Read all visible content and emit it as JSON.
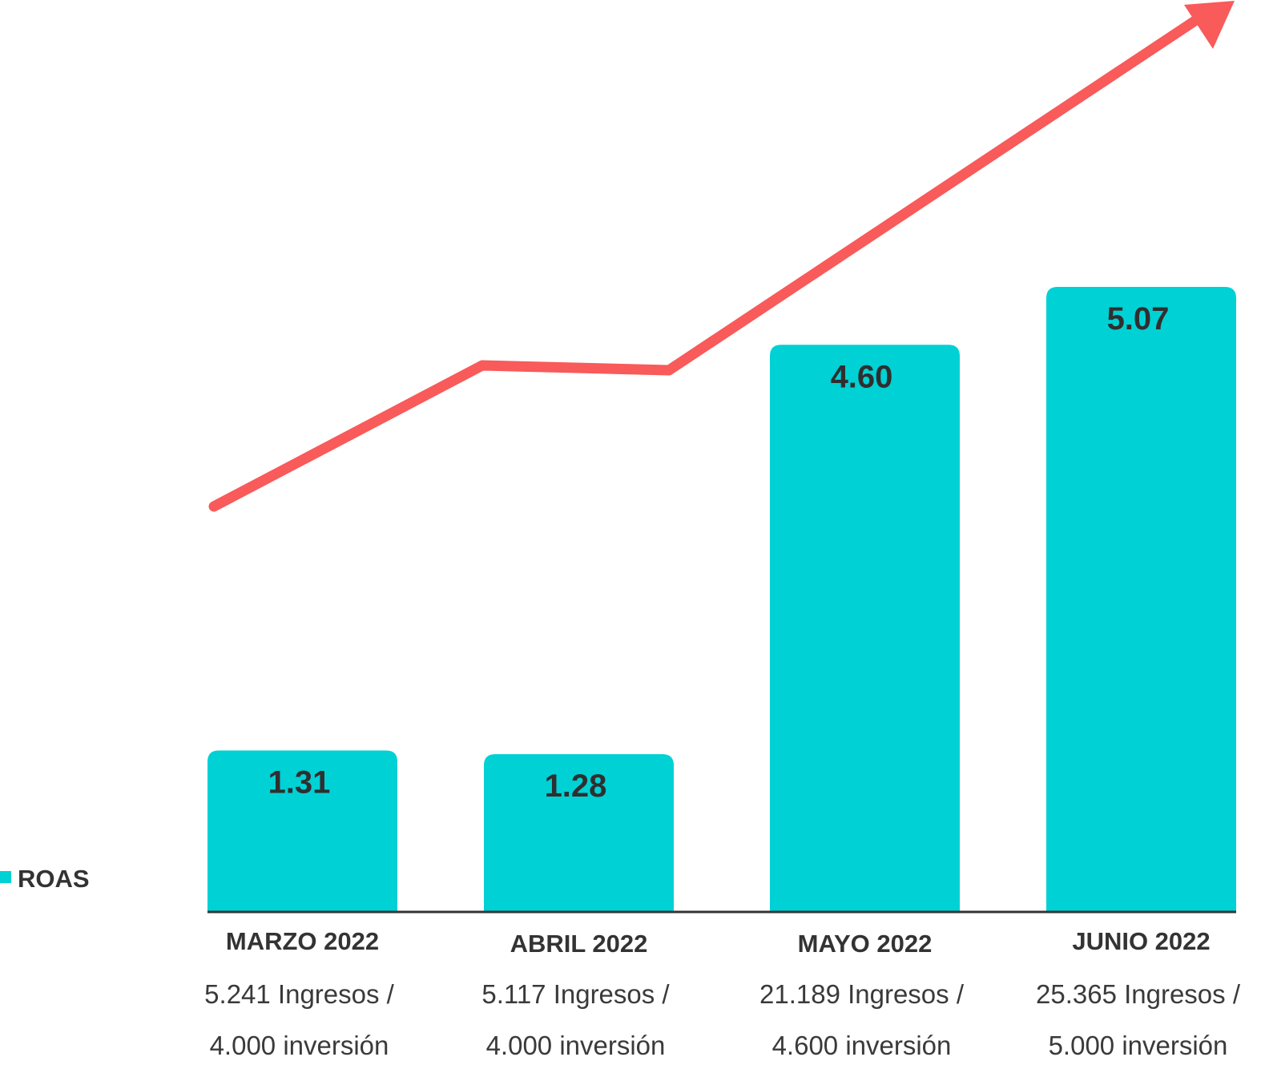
{
  "chart_data": {
    "type": "bar",
    "title": "",
    "xlabel": "",
    "ylabel": "",
    "categories": [
      "MARZO 2022",
      "ABRIL 2022",
      "MAYO 2022",
      "JUNIO 2022"
    ],
    "series": [
      {
        "name": "ROAS",
        "values": [
          1.31,
          1.28,
          4.6,
          5.07
        ]
      }
    ],
    "value_labels": [
      "1.31",
      "1.28",
      "4.60",
      "5.07"
    ],
    "sublabels": [
      [
        "5.241 Ingresos /",
        "4.000 inversión"
      ],
      [
        "5.117 Ingresos /",
        "4.000 inversión"
      ],
      [
        "21.189 Ingresos /",
        "4.600 inversión"
      ],
      [
        "25.365 Ingresos /",
        "5.000 inversión"
      ]
    ],
    "ylim": [
      0,
      5.07
    ],
    "grid": false,
    "legend": {
      "position": "left",
      "label": "ROAS"
    },
    "trend_arrow": true,
    "colors": {
      "bar": "#00D1D5",
      "trend": "#F95A5A",
      "baseline": "#333333",
      "text": "#333333"
    }
  }
}
